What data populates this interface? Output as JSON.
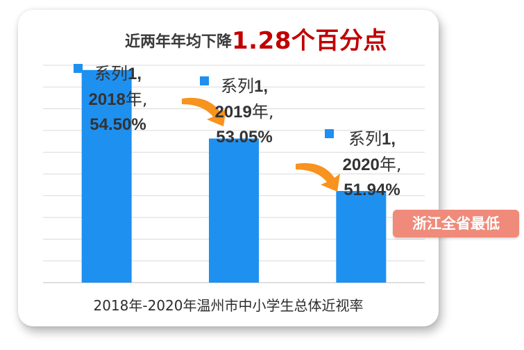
{
  "title": {
    "main": "近两年年均下降",
    "accent": "1.28个百分点"
  },
  "badge": "浙江全省最低",
  "colors": {
    "bar": "#1e90f0",
    "title_accent": "#c00000",
    "badge": "#f08a7a",
    "arrow": "#f7931e"
  },
  "chart_data": {
    "type": "bar",
    "xlabel": "2018年-2020年温州市中小学生总体近视率",
    "categories": [
      "2018年",
      "2019年",
      "2020年"
    ],
    "series": [
      {
        "name": "系列1",
        "values": [
          54.5,
          53.05,
          51.94
        ]
      }
    ],
    "data_labels": [
      {
        "series": "系列",
        "series_num": "1",
        "year_num": "2018",
        "year_suffix": "年,",
        "value": "54.50%"
      },
      {
        "series": "系列",
        "series_num": "1",
        "year_num": "2019",
        "year_suffix": "年,",
        "value": "53.05%"
      },
      {
        "series": "系列",
        "series_num": "1",
        "year_num": "2020",
        "year_suffix": "年,",
        "value": "51.94%"
      }
    ],
    "ylim": [
      50,
      54.6
    ],
    "grid": true,
    "legend": "none"
  }
}
